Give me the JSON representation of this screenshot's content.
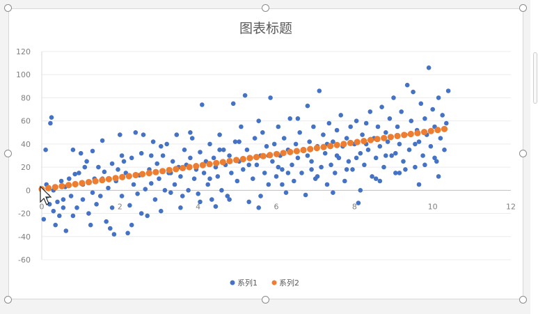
{
  "chart_data": {
    "type": "scatter",
    "title": "图表标题",
    "xlabel": "",
    "ylabel": "",
    "xlim": [
      0,
      12
    ],
    "ylim": [
      -60,
      120
    ],
    "x_ticks": [
      0,
      2,
      4,
      6,
      8,
      10,
      12
    ],
    "y_ticks": [
      -60,
      -40,
      -20,
      0,
      20,
      40,
      60,
      80,
      100,
      120
    ],
    "grid": "horizontal",
    "legend_position": "bottom",
    "series": [
      {
        "name": "系列1",
        "color": "#4472c4",
        "marker": "circle",
        "points": [
          [
            0.05,
            -25
          ],
          [
            0.1,
            35
          ],
          [
            0.12,
            5
          ],
          [
            0.15,
            -5
          ],
          [
            0.2,
            -12
          ],
          [
            0.22,
            58
          ],
          [
            0.25,
            63
          ],
          [
            0.3,
            -18
          ],
          [
            0.35,
            -30
          ],
          [
            0.4,
            -10
          ],
          [
            0.45,
            -22
          ],
          [
            0.5,
            8
          ],
          [
            0.55,
            -15
          ],
          [
            0.6,
            3
          ],
          [
            0.62,
            -35
          ],
          [
            0.7,
            10
          ],
          [
            0.75,
            -5
          ],
          [
            0.8,
            35
          ],
          [
            0.85,
            14
          ],
          [
            0.9,
            -15
          ],
          [
            0.95,
            15
          ],
          [
            1.0,
            32
          ],
          [
            1.05,
            -8
          ],
          [
            1.1,
            20
          ],
          [
            1.15,
            25
          ],
          [
            1.2,
            -20
          ],
          [
            1.25,
            -30
          ],
          [
            1.3,
            34
          ],
          [
            1.35,
            10
          ],
          [
            1.4,
            -12
          ],
          [
            1.45,
            20
          ],
          [
            1.5,
            -5
          ],
          [
            1.55,
            43
          ],
          [
            1.6,
            16
          ],
          [
            1.65,
            -27
          ],
          [
            1.7,
            2
          ],
          [
            1.75,
            -33
          ],
          [
            1.8,
            23
          ],
          [
            1.85,
            -38
          ],
          [
            1.9,
            8
          ],
          [
            1.95,
            18
          ],
          [
            2.0,
            48
          ],
          [
            2.05,
            -5
          ],
          [
            2.1,
            25
          ],
          [
            2.15,
            15
          ],
          [
            2.2,
            -37
          ],
          [
            2.25,
            -13
          ],
          [
            2.3,
            28
          ],
          [
            2.35,
            5
          ],
          [
            2.4,
            50
          ],
          [
            2.45,
            -3
          ],
          [
            2.5,
            13
          ],
          [
            2.55,
            32
          ],
          [
            2.6,
            48
          ],
          [
            2.65,
            1
          ],
          [
            2.7,
            -22
          ],
          [
            2.75,
            18
          ],
          [
            2.8,
            6
          ],
          [
            2.85,
            42
          ],
          [
            2.9,
            -8
          ],
          [
            2.95,
            23
          ],
          [
            3.0,
            10
          ],
          [
            3.05,
            -18
          ],
          [
            3.1,
            30
          ],
          [
            3.15,
            0
          ],
          [
            3.2,
            40
          ],
          [
            3.25,
            15
          ],
          [
            3.3,
            -2
          ],
          [
            3.35,
            25
          ],
          [
            3.4,
            5
          ],
          [
            3.45,
            48
          ],
          [
            3.5,
            20
          ],
          [
            3.55,
            12
          ],
          [
            3.6,
            -5
          ],
          [
            3.65,
            35
          ],
          [
            3.7,
            22
          ],
          [
            3.75,
            0
          ],
          [
            3.8,
            28
          ],
          [
            3.85,
            45
          ],
          [
            3.9,
            10
          ],
          [
            3.95,
            18
          ],
          [
            4.0,
            -3
          ],
          [
            4.05,
            33
          ],
          [
            4.1,
            74
          ],
          [
            4.15,
            15
          ],
          [
            4.2,
            25
          ],
          [
            4.25,
            5
          ],
          [
            4.3,
            40
          ],
          [
            4.35,
            -8
          ],
          [
            4.4,
            28
          ],
          [
            4.45,
            20
          ],
          [
            4.5,
            12
          ],
          [
            4.55,
            48
          ],
          [
            4.6,
            0
          ],
          [
            4.65,
            35
          ],
          [
            4.7,
            22
          ],
          [
            4.75,
            -5
          ],
          [
            4.8,
            30
          ],
          [
            4.85,
            15
          ],
          [
            4.9,
            75
          ],
          [
            4.95,
            42
          ],
          [
            5.0,
            8
          ],
          [
            5.05,
            25
          ],
          [
            5.1,
            55
          ],
          [
            5.15,
            18
          ],
          [
            5.2,
            82
          ],
          [
            5.25,
            35
          ],
          [
            5.3,
            -10
          ],
          [
            5.35,
            28
          ],
          [
            5.4,
            10
          ],
          [
            5.45,
            45
          ],
          [
            5.5,
            22
          ],
          [
            5.55,
            -15
          ],
          [
            5.6,
            30
          ],
          [
            5.65,
            50
          ],
          [
            5.7,
            15
          ],
          [
            5.75,
            38
          ],
          [
            5.8,
            5
          ],
          [
            5.85,
            80
          ],
          [
            5.9,
            25
          ],
          [
            5.95,
            40
          ],
          [
            6.0,
            12
          ],
          [
            6.05,
            55
          ],
          [
            6.1,
            30
          ],
          [
            6.15,
            18
          ],
          [
            6.2,
            45
          ],
          [
            6.25,
            -2
          ],
          [
            6.3,
            35
          ],
          [
            6.35,
            62
          ],
          [
            6.4,
            22
          ],
          [
            6.45,
            8
          ],
          [
            6.5,
            40
          ],
          [
            6.55,
            28
          ],
          [
            6.6,
            50
          ],
          [
            6.65,
            15
          ],
          [
            6.7,
            35
          ],
          [
            6.75,
            -4
          ],
          [
            6.8,
            73
          ],
          [
            6.85,
            42
          ],
          [
            6.9,
            25
          ],
          [
            6.95,
            55
          ],
          [
            7.0,
            10
          ],
          [
            7.05,
            38
          ],
          [
            7.1,
            86
          ],
          [
            7.15,
            20
          ],
          [
            7.2,
            48
          ],
          [
            7.25,
            32
          ],
          [
            7.3,
            5
          ],
          [
            7.35,
            58
          ],
          [
            7.4,
            22
          ],
          [
            7.45,
            42
          ],
          [
            7.5,
            15
          ],
          [
            7.55,
            52
          ],
          [
            7.6,
            28
          ],
          [
            7.65,
            65
          ],
          [
            7.7,
            38
          ],
          [
            7.75,
            8
          ],
          [
            7.8,
            45
          ],
          [
            7.85,
            25
          ],
          [
            7.9,
            55
          ],
          [
            7.95,
            18
          ],
          [
            8.0,
            40
          ],
          [
            8.05,
            60
          ],
          [
            8.1,
            -11
          ],
          [
            8.15,
            32
          ],
          [
            8.2,
            48
          ],
          [
            8.25,
            22
          ],
          [
            8.3,
            58
          ],
          [
            8.35,
            35
          ],
          [
            8.4,
            68
          ],
          [
            8.45,
            12
          ],
          [
            8.5,
            45
          ],
          [
            8.55,
            28
          ],
          [
            8.6,
            55
          ],
          [
            8.65,
            38
          ],
          [
            8.7,
            72
          ],
          [
            8.75,
            20
          ],
          [
            8.8,
            50
          ],
          [
            8.85,
            42
          ],
          [
            8.9,
            62
          ],
          [
            8.95,
            30
          ],
          [
            9.0,
            80
          ],
          [
            9.05,
            15
          ],
          [
            9.1,
            55
          ],
          [
            9.15,
            40
          ],
          [
            9.2,
            68
          ],
          [
            9.25,
            25
          ],
          [
            9.3,
            48
          ],
          [
            9.35,
            91
          ],
          [
            9.4,
            35
          ],
          [
            9.45,
            60
          ],
          [
            9.5,
            85
          ],
          [
            9.55,
            20
          ],
          [
            9.6,
            52
          ],
          [
            9.65,
            42
          ],
          [
            9.7,
            75
          ],
          [
            9.75,
            30
          ],
          [
            9.8,
            62
          ],
          [
            9.85,
            48
          ],
          [
            9.9,
            106
          ],
          [
            9.95,
            38
          ],
          [
            10.0,
            70
          ],
          [
            10.05,
            55
          ],
          [
            10.1,
            25
          ],
          [
            10.15,
            80
          ],
          [
            10.2,
            45
          ],
          [
            10.25,
            65
          ],
          [
            10.3,
            35
          ],
          [
            10.35,
            58
          ],
          [
            10.4,
            86
          ],
          [
            0.3,
            0
          ],
          [
            0.55,
            -8
          ],
          [
            0.8,
            -22
          ],
          [
            1.05,
            5
          ],
          [
            1.3,
            -2
          ],
          [
            1.55,
            10
          ],
          [
            1.8,
            -15
          ],
          [
            2.05,
            30
          ],
          [
            2.3,
            -30
          ],
          [
            2.55,
            -20
          ],
          [
            2.8,
            30
          ],
          [
            3.05,
            38
          ],
          [
            3.3,
            15
          ],
          [
            3.55,
            -15
          ],
          [
            3.8,
            50
          ],
          [
            4.05,
            -10
          ],
          [
            4.3,
            10
          ],
          [
            4.55,
            35
          ],
          [
            4.8,
            -8
          ],
          [
            5.05,
            42
          ],
          [
            5.3,
            22
          ],
          [
            5.55,
            60
          ],
          [
            5.8,
            30
          ],
          [
            6.05,
            20
          ],
          [
            6.3,
            15
          ],
          [
            6.55,
            62
          ],
          [
            6.8,
            30
          ],
          [
            7.05,
            12
          ],
          [
            7.3,
            40
          ],
          [
            7.55,
            30
          ],
          [
            7.8,
            18
          ],
          [
            8.05,
            28
          ],
          [
            8.3,
            40
          ],
          [
            8.55,
            10
          ],
          [
            8.8,
            30
          ],
          [
            9.05,
            32
          ],
          [
            9.3,
            18
          ],
          [
            9.55,
            40
          ],
          [
            9.8,
            22
          ],
          [
            10.05,
            28
          ],
          [
            5.6,
            -5
          ],
          [
            6.15,
            5
          ],
          [
            6.9,
            18
          ],
          [
            7.45,
            -2
          ],
          [
            8.15,
            0
          ],
          [
            8.65,
            8
          ],
          [
            9.15,
            15
          ],
          [
            9.65,
            5
          ],
          [
            10.15,
            12
          ],
          [
            4.45,
            -14
          ]
        ]
      },
      {
        "name": "系列2",
        "color": "#ed7d31",
        "marker": "circle",
        "line": {
          "x": [
            0,
            10.3
          ],
          "y": [
            1,
            53
          ]
        }
      }
    ]
  }
}
